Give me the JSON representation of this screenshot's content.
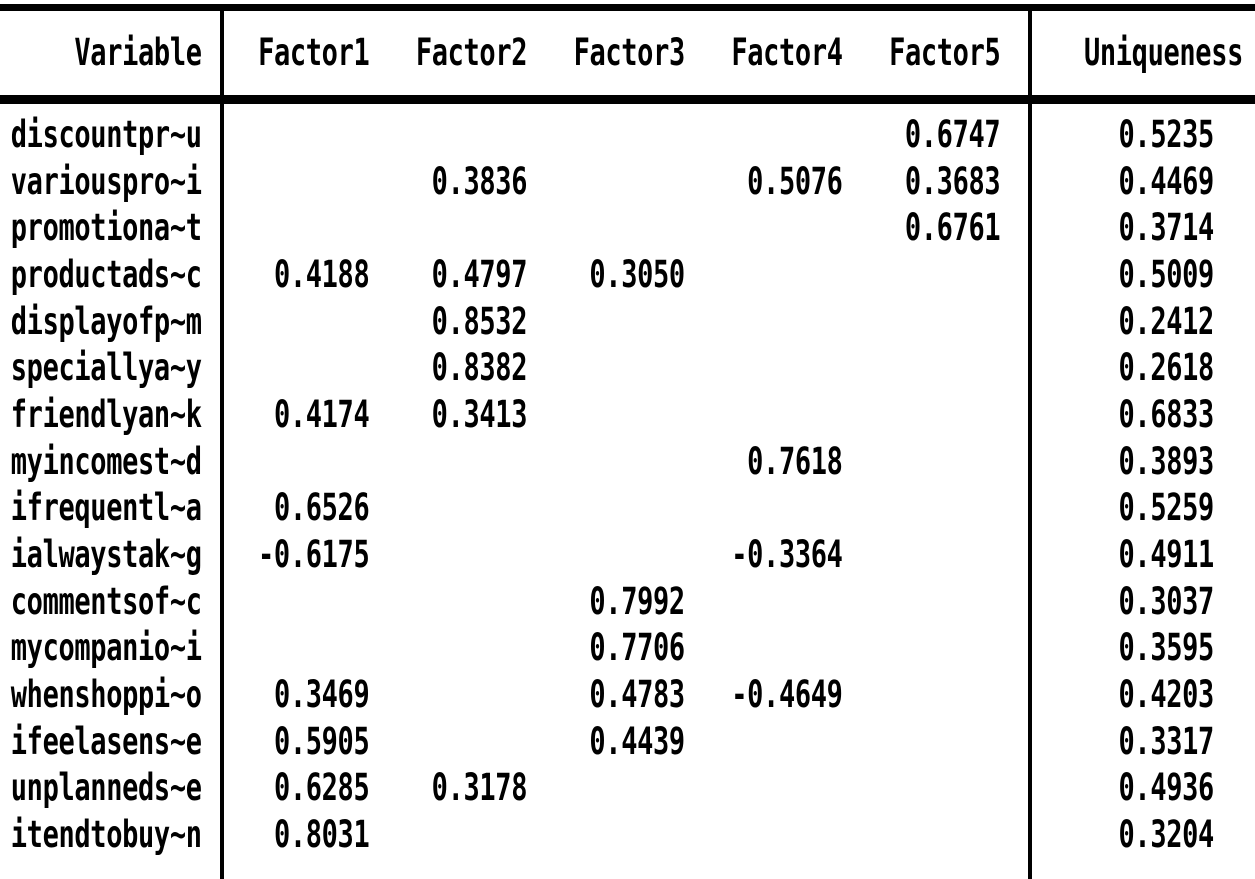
{
  "colors": {
    "background": "#ffffff",
    "text": "#000000",
    "rule": "#000000"
  },
  "table": {
    "header": {
      "variable": "Variable",
      "factor1": "Factor1",
      "factor2": "Factor2",
      "factor3": "Factor3",
      "factor4": "Factor4",
      "factor5": "Factor5",
      "uniqueness": "Uniqueness"
    },
    "rows": [
      {
        "variable": "discountpr~u",
        "factor1": "",
        "factor2": "",
        "factor3": "",
        "factor4": "",
        "factor5": "0.6747",
        "uniqueness": "0.5235"
      },
      {
        "variable": "variouspro~i",
        "factor1": "",
        "factor2": "0.3836",
        "factor3": "",
        "factor4": "0.5076",
        "factor5": "0.3683",
        "uniqueness": "0.4469"
      },
      {
        "variable": "promotiona~t",
        "factor1": "",
        "factor2": "",
        "factor3": "",
        "factor4": "",
        "factor5": "0.6761",
        "uniqueness": "0.3714"
      },
      {
        "variable": "productads~c",
        "factor1": "0.4188",
        "factor2": "0.4797",
        "factor3": "0.3050",
        "factor4": "",
        "factor5": "",
        "uniqueness": "0.5009"
      },
      {
        "variable": "displayofp~m",
        "factor1": "",
        "factor2": "0.8532",
        "factor3": "",
        "factor4": "",
        "factor5": "",
        "uniqueness": "0.2412"
      },
      {
        "variable": "speciallya~y",
        "factor1": "",
        "factor2": "0.8382",
        "factor3": "",
        "factor4": "",
        "factor5": "",
        "uniqueness": "0.2618"
      },
      {
        "variable": "friendlyan~k",
        "factor1": "0.4174",
        "factor2": "0.3413",
        "factor3": "",
        "factor4": "",
        "factor5": "",
        "uniqueness": "0.6833"
      },
      {
        "variable": "myincomest~d",
        "factor1": "",
        "factor2": "",
        "factor3": "",
        "factor4": "0.7618",
        "factor5": "",
        "uniqueness": "0.3893"
      },
      {
        "variable": "ifrequentl~a",
        "factor1": "0.6526",
        "factor2": "",
        "factor3": "",
        "factor4": "",
        "factor5": "",
        "uniqueness": "0.5259"
      },
      {
        "variable": "ialwaystak~g",
        "factor1": "-0.6175",
        "factor2": "",
        "factor3": "",
        "factor4": "-0.3364",
        "factor5": "",
        "uniqueness": "0.4911"
      },
      {
        "variable": "commentsof~c",
        "factor1": "",
        "factor2": "",
        "factor3": "0.7992",
        "factor4": "",
        "factor5": "",
        "uniqueness": "0.3037"
      },
      {
        "variable": "mycompanio~i",
        "factor1": "",
        "factor2": "",
        "factor3": "0.7706",
        "factor4": "",
        "factor5": "",
        "uniqueness": "0.3595"
      },
      {
        "variable": "whenshoppi~o",
        "factor1": "0.3469",
        "factor2": "",
        "factor3": "0.4783",
        "factor4": "-0.4649",
        "factor5": "",
        "uniqueness": "0.4203"
      },
      {
        "variable": "ifeelasens~e",
        "factor1": "0.5905",
        "factor2": "",
        "factor3": "0.4439",
        "factor4": "",
        "factor5": "",
        "uniqueness": "0.3317"
      },
      {
        "variable": "unplanneds~e",
        "factor1": "0.6285",
        "factor2": "0.3178",
        "factor3": "",
        "factor4": "",
        "factor5": "",
        "uniqueness": "0.4936"
      },
      {
        "variable": "itendtobuy~n",
        "factor1": "0.8031",
        "factor2": "",
        "factor3": "",
        "factor4": "",
        "factor5": "",
        "uniqueness": "0.3204"
      }
    ]
  }
}
